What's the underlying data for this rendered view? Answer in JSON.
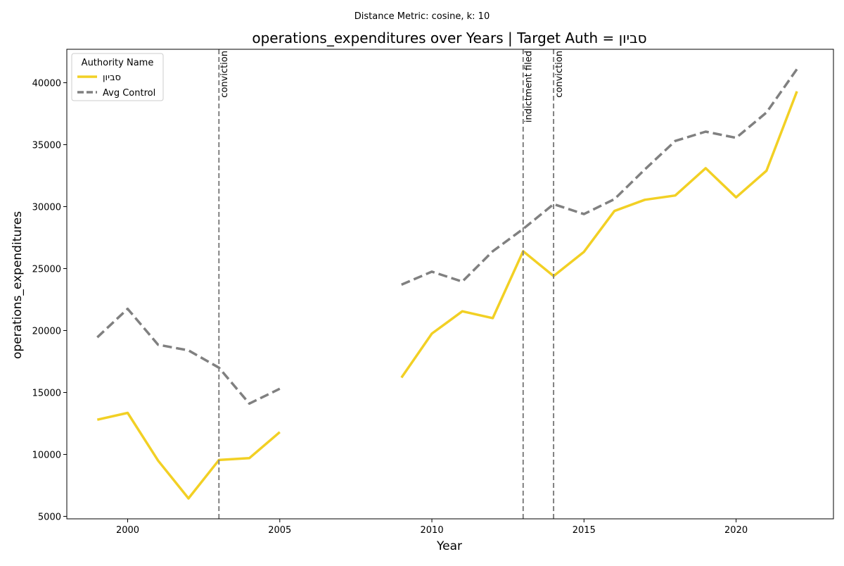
{
  "chart_data": {
    "type": "line",
    "suptitle": "Distance Metric: cosine, k: 10",
    "title": "operations_expenditures over Years | Target Auth = סביון",
    "xlabel": "Year",
    "ylabel": "operations_expenditures",
    "xlim": [
      1998,
      2023.2
    ],
    "ylim": [
      4800,
      42700
    ],
    "xticks": [
      2000,
      2005,
      2010,
      2015,
      2020
    ],
    "yticks": [
      5000,
      10000,
      15000,
      20000,
      25000,
      30000,
      35000,
      40000
    ],
    "legend": {
      "title": "Authority Name",
      "placement": "top-left"
    },
    "series": [
      {
        "name": "סביון",
        "color": "#f2d024",
        "style": "solid",
        "segments": [
          {
            "x": [
              1999,
              2000,
              2001,
              2002,
              2003,
              2004,
              2005
            ],
            "y": [
              12800,
              13350,
              9500,
              6450,
              9550,
              9700,
              11800
            ]
          },
          {
            "x": [
              2009,
              2010,
              2011,
              2012,
              2013,
              2014,
              2015,
              2016,
              2017,
              2018,
              2019,
              2020,
              2021,
              2022
            ],
            "y": [
              16200,
              19750,
              21550,
              21000,
              26400,
              24400,
              26350,
              29650,
              30550,
              30900,
              33100,
              30750,
              32900,
              39300
            ]
          }
        ]
      },
      {
        "name": "Avg Control",
        "color": "#808080",
        "style": "dashed",
        "segments": [
          {
            "x": [
              1999,
              2000,
              2001,
              2002,
              2003,
              2004,
              2005
            ],
            "y": [
              19450,
              21750,
              18850,
              18400,
              17000,
              14100,
              15300
            ]
          },
          {
            "x": [
              2009,
              2010,
              2011,
              2012,
              2013,
              2014,
              2015,
              2016,
              2017,
              2018,
              2019,
              2020,
              2021,
              2022
            ],
            "y": [
              23700,
              24750,
              23950,
              26400,
              28200,
              30200,
              29400,
              30600,
              33000,
              35300,
              36050,
              35550,
              37600,
              41100
            ]
          }
        ]
      }
    ],
    "events": [
      {
        "x": 2003,
        "label": "conviction"
      },
      {
        "x": 2013,
        "label": "indictment filed"
      },
      {
        "x": 2014,
        "label": "conviction"
      }
    ]
  }
}
